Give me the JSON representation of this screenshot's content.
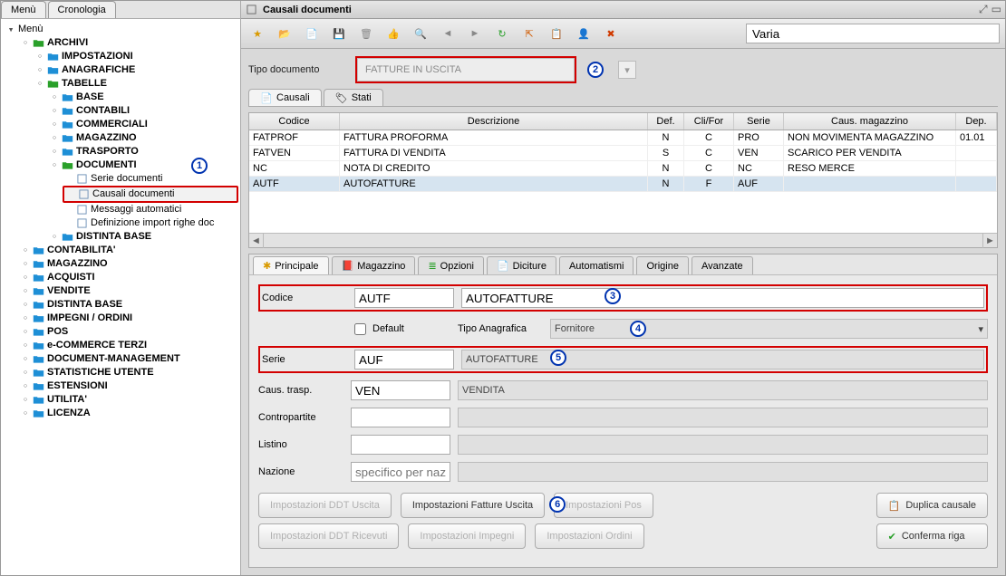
{
  "leftTabs": {
    "menu": "Menù",
    "history": "Cronologia"
  },
  "tree": {
    "root": "Menù",
    "archivi": "ARCHIVI",
    "impostazioni": "IMPOSTAZIONI",
    "anagrafiche": "ANAGRAFICHE",
    "tabelle": "TABELLE",
    "base": "BASE",
    "contabili": "CONTABILI",
    "commerciali": "COMMERCIALI",
    "magazzino": "MAGAZZINO",
    "trasporto": "TRASPORTO",
    "documenti": "DOCUMENTI",
    "serieDoc": "Serie documenti",
    "causaliDoc": "Causali documenti",
    "msgAuto": "Messaggi automatici",
    "defImport": "Definizione import righe doc",
    "distintaBase": "DISTINTA BASE",
    "contabilita": "CONTABILITA'",
    "magazzino2": "MAGAZZINO",
    "acquisti": "ACQUISTI",
    "vendite": "VENDITE",
    "distinta2": "DISTINTA BASE",
    "impegni": "IMPEGNI / ORDINI",
    "pos": "POS",
    "ecommerce": "e-COMMERCE TERZI",
    "docmgmt": "DOCUMENT-MANAGEMENT",
    "stat": "STATISTICHE UTENTE",
    "estensioni": "ESTENSIONI",
    "utilita": "UTILITA'",
    "licenza": "LICENZA"
  },
  "window": {
    "title": "Causali documenti"
  },
  "toolbar": {
    "search": "Varia"
  },
  "docTypeLabel": "Tipo documento",
  "docTypeValue": "FATTURE IN USCITA",
  "subtabs": {
    "causali": "Causali",
    "stati": "Stati"
  },
  "gridHeaders": {
    "codice": "Codice",
    "descr": "Descrizione",
    "def": "Def.",
    "clifor": "Cli/For",
    "serie": "Serie",
    "causmag": "Caus. magazzino",
    "dep": "Dep."
  },
  "rows": [
    {
      "codice": "FATPROF",
      "descr": "FATTURA PROFORMA",
      "def": "N",
      "clifor": "C",
      "serie": "PRO",
      "causmag": "NON MOVIMENTA MAGAZZINO",
      "dep": "01.01"
    },
    {
      "codice": "FATVEN",
      "descr": "FATTURA DI VENDITA",
      "def": "S",
      "clifor": "C",
      "serie": "VEN",
      "causmag": "SCARICO PER VENDITA",
      "dep": ""
    },
    {
      "codice": "NC",
      "descr": "NOTA DI CREDITO",
      "def": "N",
      "clifor": "C",
      "serie": "NC",
      "causmag": "RESO MERCE",
      "dep": ""
    },
    {
      "codice": "AUTF",
      "descr": "AUTOFATTURE",
      "def": "N",
      "clifor": "F",
      "serie": "AUF",
      "causmag": "",
      "dep": ""
    }
  ],
  "selectedRowCode": "AUTF",
  "detailTabs": {
    "principale": "Principale",
    "magazzino": "Magazzino",
    "opzioni": "Opzioni",
    "diciture": "Diciture",
    "automatismi": "Automatismi",
    "origine": "Origine",
    "avanzate": "Avanzate"
  },
  "detail": {
    "codiceLbl": "Codice",
    "codice": "AUTF",
    "descr": "AUTOFATTURE",
    "defaultLbl": "Default",
    "tipoAnagLbl": "Tipo Anagrafica",
    "tipoAnag": "Fornitore",
    "serieLbl": "Serie",
    "serie": "AUF",
    "serieDescr": "AUTOFATTURE",
    "causTraspLbl": "Caus. trasp.",
    "causTrasp": "VEN",
    "causTraspDescr": "VENDITA",
    "contropartiteLbl": "Contropartite",
    "contropartite": "",
    "listinoLbl": "Listino",
    "listino": "",
    "nazioneLbl": "Nazione",
    "nazionePh": "specifico per naz."
  },
  "footerButtons": {
    "ddtUscita": "Impostazioni DDT Uscita",
    "fattureUscita": "Impostazioni Fatture Uscita",
    "pos": "Impostazioni Pos",
    "ddtRicevuti": "Impostazioni DDT Ricevuti",
    "impegni": "Impostazioni Impegni",
    "ordini": "Impostazioni Ordini",
    "duplica": "Duplica causale",
    "conferma": "Conferma riga"
  },
  "annotations": {
    "a1": "1",
    "a2": "2",
    "a3": "3",
    "a4": "4",
    "a5": "5",
    "a6": "6"
  },
  "colors": {
    "red": "#d30000",
    "blue": "#0033b0",
    "folder": "#1e8fd6",
    "folderGreen": "#2aa02a",
    "selRow": "#d6e4f0"
  }
}
